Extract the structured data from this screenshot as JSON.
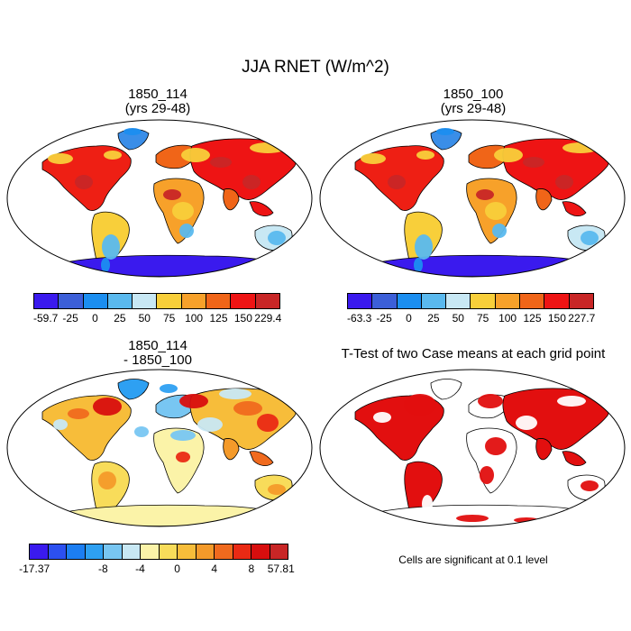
{
  "main_title": "JJA RNET (W/m^2)",
  "panels": [
    {
      "id": "p1",
      "title_line1": "1850_114",
      "title_line2": "(yrs 29-48)",
      "colorbar": {
        "labels": [
          "-59.7",
          "-25",
          "0",
          "25",
          "50",
          "75",
          "100",
          "125",
          "150",
          "229.4"
        ],
        "colors": [
          "#3a1aee",
          "#3c5fd8",
          "#1b8ef0",
          "#5ab9ee",
          "#c8e8f4",
          "#f8cf3a",
          "#f7a12a",
          "#f06518",
          "#ee1414",
          "#c82626"
        ]
      }
    },
    {
      "id": "p2",
      "title_line1": "1850_100",
      "title_line2": "(yrs 29-48)",
      "colorbar": {
        "labels": [
          "-63.3",
          "-25",
          "0",
          "25",
          "50",
          "75",
          "100",
          "125",
          "150",
          "227.7"
        ],
        "colors": [
          "#3a1aee",
          "#3c5fd8",
          "#1b8ef0",
          "#5ab9ee",
          "#c8e8f4",
          "#f8cf3a",
          "#f7a12a",
          "#f06518",
          "#ee1414",
          "#c82626"
        ]
      }
    },
    {
      "id": "p3",
      "title_line1": "1850_114",
      "title_line2": "- 1850_100",
      "colorbar": {
        "labels": [
          "-17.37",
          "-8",
          "-4",
          "0",
          "4",
          "8",
          "57.81"
        ],
        "colors": [
          "#3a1aee",
          "#2c50f0",
          "#1c7ef2",
          "#2ea0f2",
          "#78c6f2",
          "#c8e8f4",
          "#fbf3a8",
          "#f8dc5a",
          "#f7bd3a",
          "#f49a2a",
          "#f06a1e",
          "#ea2a14",
          "#d80e0e",
          "#c82626"
        ]
      }
    },
    {
      "id": "p4",
      "title_line1": "T-Test of two Case means at each grid point",
      "note": "Cells are significant at 0.1 level"
    }
  ]
}
